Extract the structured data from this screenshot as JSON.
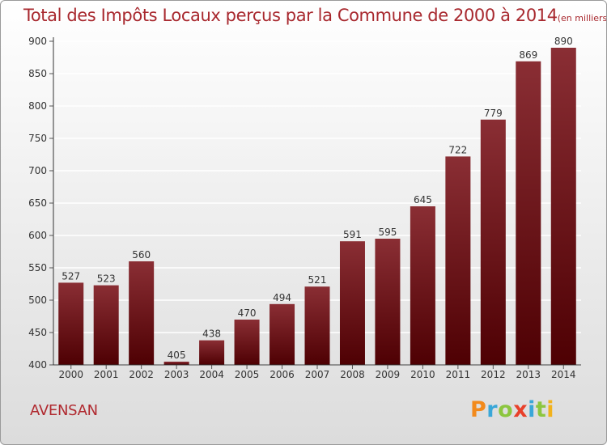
{
  "colors": {
    "title": "#a8282e",
    "bar_top": "#8a2e34",
    "bar_bottom": "#4e0003",
    "grid": "#ffffff"
  },
  "chart_data": {
    "type": "bar",
    "title": "Total des Impôts Locaux perçus par la Commune de 2000 à 2014",
    "unit": "(en milliers d'€)",
    "categories": [
      "2000",
      "2001",
      "2002",
      "2003",
      "2004",
      "2005",
      "2006",
      "2007",
      "2008",
      "2009",
      "2010",
      "2011",
      "2012",
      "2013",
      "2014"
    ],
    "values": [
      527,
      523,
      560,
      405,
      438,
      470,
      494,
      521,
      591,
      595,
      645,
      722,
      779,
      869,
      890
    ],
    "yticks": [
      400,
      450,
      500,
      550,
      600,
      650,
      700,
      750,
      800,
      850,
      900
    ],
    "ylim": [
      400,
      900
    ],
    "xlabel": "",
    "ylabel": "",
    "grid": true
  },
  "commune": "AVENSAN",
  "logo": {
    "letters": [
      "P",
      "r",
      "o",
      "x",
      "i",
      "t",
      "i"
    ]
  }
}
